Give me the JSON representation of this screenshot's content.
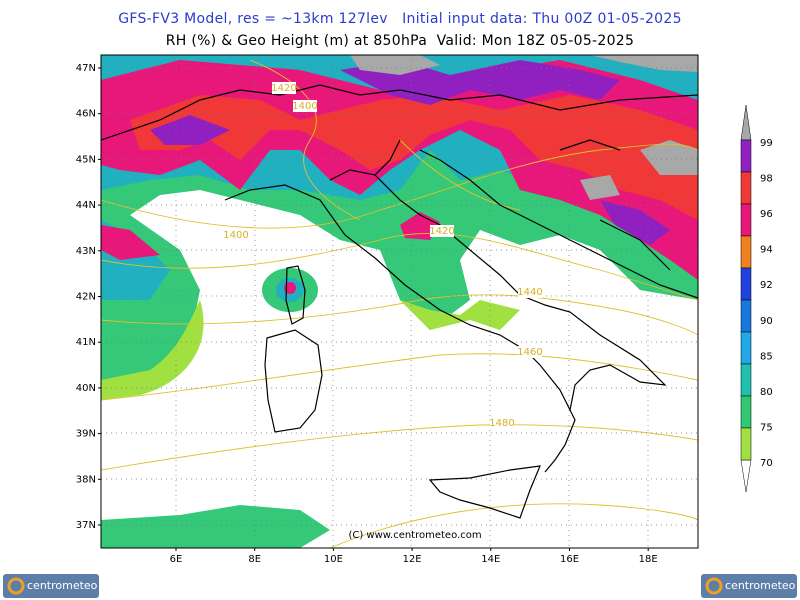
{
  "header": {
    "line1": "GFS-FV3 Model, res = ~13km 127lev   Initial input data: Thu 00Z 01-05-2025",
    "line2": "RH (%) & Geo Height (m) at 850hPa  Valid: Mon 18Z 05-05-2025"
  },
  "map": {
    "lat_labels": [
      "47N",
      "46N",
      "45N",
      "44N",
      "43N",
      "42N",
      "41N",
      "40N",
      "39N",
      "38N",
      "37N"
    ],
    "lon_labels": [
      "6E",
      "8E",
      "10E",
      "12E",
      "14E",
      "16E",
      "18E"
    ],
    "contour_labels": [
      "1420",
      "1400",
      "1400",
      "1420",
      "1440",
      "1460",
      "1480"
    ],
    "credit": "(C) www.centrometeo.com"
  },
  "legend": {
    "labels": [
      "99",
      "98",
      "96",
      "94",
      "92",
      "90",
      "85",
      "80",
      "75",
      "70"
    ]
  },
  "logos": [
    "centrometeo",
    "centrometeo"
  ]
}
